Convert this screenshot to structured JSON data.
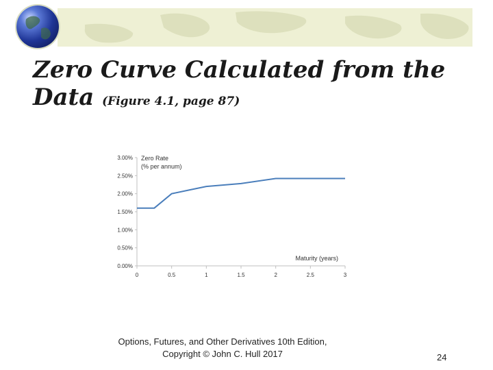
{
  "slide": {
    "title_main": "Zero Curve Calculated from the",
    "title_line2": "Data",
    "title_sub": "(Figure 4.1, page 87)",
    "footer_line1": "Options, Futures, and Other Derivatives 10th Edition,",
    "footer_line2": "Copyright © John C. Hull 2017",
    "page_number": "24"
  },
  "colors": {
    "banner": "#eef0d4",
    "line": "#4a7ebb",
    "axis": "#bfbfbf"
  },
  "chart_data": {
    "type": "line",
    "ylabel_line1": "Zero Rate",
    "ylabel_line2": "(% per annum)",
    "xlabel": "Maturity (years)",
    "xlim": [
      0,
      3
    ],
    "ylim": [
      0,
      3
    ],
    "xticks": [
      "0",
      "0.5",
      "1",
      "1.5",
      "2",
      "2.5",
      "3"
    ],
    "yticks": [
      "0.00%",
      "0.50%",
      "1.00%",
      "1.50%",
      "2.00%",
      "2.50%",
      "3.00%"
    ],
    "grid": false,
    "series": [
      {
        "x": [
          0,
          0.25,
          0.5,
          0.75,
          1.0,
          1.5,
          2.0,
          3.0
        ],
        "y": [
          1.6,
          1.6,
          2.0,
          2.1,
          2.2,
          2.28,
          2.42,
          2.42
        ]
      }
    ]
  }
}
